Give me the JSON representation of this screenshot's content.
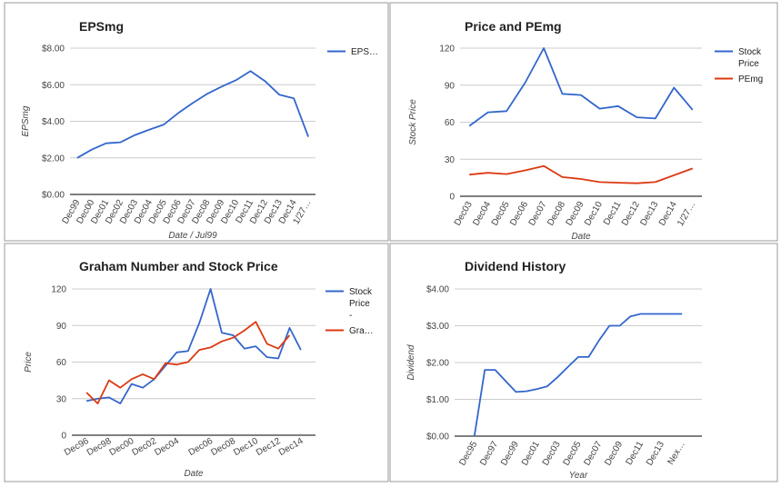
{
  "colors": {
    "blue": "#3366cc",
    "red": "#dc3912",
    "grid": "#cccccc",
    "axis": "#333333",
    "panel_border": "#999999"
  },
  "chart_data": [
    {
      "type": "line",
      "title": "EPSmg",
      "xlabel": "Date / Jul99",
      "ylabel": "EPSmg",
      "ylim": [
        0,
        8
      ],
      "yticks": [
        "$0.00",
        "$2.00",
        "$4.00",
        "$6.00",
        "$8.00"
      ],
      "categories": [
        "Dec99",
        "Dec00",
        "Dec01",
        "Dec02",
        "Dec03",
        "Dec04",
        "Dec05",
        "Dec06",
        "Dec07",
        "Dec08",
        "Dec09",
        "Dec10",
        "Dec11",
        "Dec12",
        "Dec13",
        "Dec14",
        "1/27…"
      ],
      "series": [
        {
          "name": "EPS…",
          "color": "#3366cc",
          "values": [
            2.0,
            2.45,
            2.8,
            2.85,
            3.25,
            3.55,
            3.82,
            4.45,
            5.0,
            5.5,
            5.9,
            6.25,
            6.75,
            6.2,
            5.45,
            5.25,
            3.15
          ]
        }
      ],
      "legend": "right"
    },
    {
      "type": "line",
      "title": "Price and PEmg",
      "xlabel": "Date",
      "ylabel": "Stock Price",
      "ylim": [
        0,
        120
      ],
      "yticks": [
        "0",
        "30",
        "60",
        "90",
        "120"
      ],
      "categories": [
        "Dec03",
        "Dec04",
        "Dec05",
        "Dec06",
        "Dec07",
        "Dec08",
        "Dec09",
        "Dec10",
        "Dec11",
        "Dec12",
        "Dec13",
        "Dec14",
        "1/27…"
      ],
      "series": [
        {
          "name": "Stock Price",
          "color": "#3366cc",
          "values": [
            57,
            68,
            69,
            92,
            120,
            83,
            82,
            71,
            73,
            64,
            63,
            88,
            70
          ]
        },
        {
          "name": "PEmg",
          "color": "#dc3912",
          "values": [
            17.5,
            19,
            18,
            21,
            24.5,
            15.5,
            14,
            11.5,
            11,
            10.5,
            11.5,
            17,
            22.5
          ]
        }
      ],
      "legend": "right"
    },
    {
      "type": "line",
      "title": "Graham Number and Stock Price",
      "xlabel": "Date",
      "ylabel": "Price",
      "ylim": [
        0,
        120
      ],
      "yticks": [
        "0",
        "30",
        "60",
        "90",
        "120"
      ],
      "tick_labels": [
        "Dec96",
        "Dec98",
        "Dec00",
        "Dec02",
        "Dec04",
        "Dec06",
        "Dec08",
        "Dec10",
        "Dec12",
        "Dec14"
      ],
      "x": [
        1996,
        1997,
        1998,
        1999,
        2000,
        2001,
        2002,
        2003,
        2004,
        2005,
        2006,
        2007,
        2008,
        2009,
        2010,
        2011,
        2012,
        2013,
        2014,
        2015
      ],
      "series": [
        {
          "name": "Stock Price -",
          "color": "#3366cc",
          "values": [
            28,
            30,
            31,
            26,
            42,
            39,
            46,
            57,
            68,
            69,
            92,
            120,
            84,
            82,
            71,
            73,
            64,
            63,
            88,
            70
          ]
        },
        {
          "name": "Gra…",
          "color": "#dc3912",
          "values": [
            35,
            26,
            45,
            39,
            46,
            50,
            46,
            59,
            58,
            60,
            70,
            72,
            77,
            80,
            86,
            93,
            75,
            71,
            82,
            null
          ]
        }
      ],
      "legend": "right"
    },
    {
      "type": "line",
      "title": "Dividend History",
      "xlabel": "Year",
      "ylabel": "Dividend",
      "ylim": [
        0,
        4
      ],
      "yticks": [
        "$0.00",
        "$1.00",
        "$2.00",
        "$3.00",
        "$4.00"
      ],
      "tick_labels": [
        "Dec95",
        "Dec97",
        "Dec99",
        "Dec01",
        "Dec03",
        "Dec05",
        "Dec07",
        "Dec09",
        "Dec11",
        "Dec13",
        "Nex…"
      ],
      "x": [
        1995,
        1996,
        1997,
        1998,
        1999,
        2000,
        2001,
        2002,
        2003,
        2004,
        2005,
        2006,
        2007,
        2008,
        2009,
        2010,
        2011,
        2012,
        2013,
        2014,
        2015
      ],
      "series": [
        {
          "name": "",
          "color": "#3366cc",
          "values": [
            0.0,
            1.8,
            1.8,
            1.5,
            1.2,
            1.22,
            1.28,
            1.35,
            1.6,
            1.88,
            2.15,
            2.15,
            2.6,
            3.0,
            3.0,
            3.25,
            3.32,
            3.32,
            3.32,
            3.32,
            3.32
          ]
        }
      ],
      "legend": "none"
    }
  ]
}
